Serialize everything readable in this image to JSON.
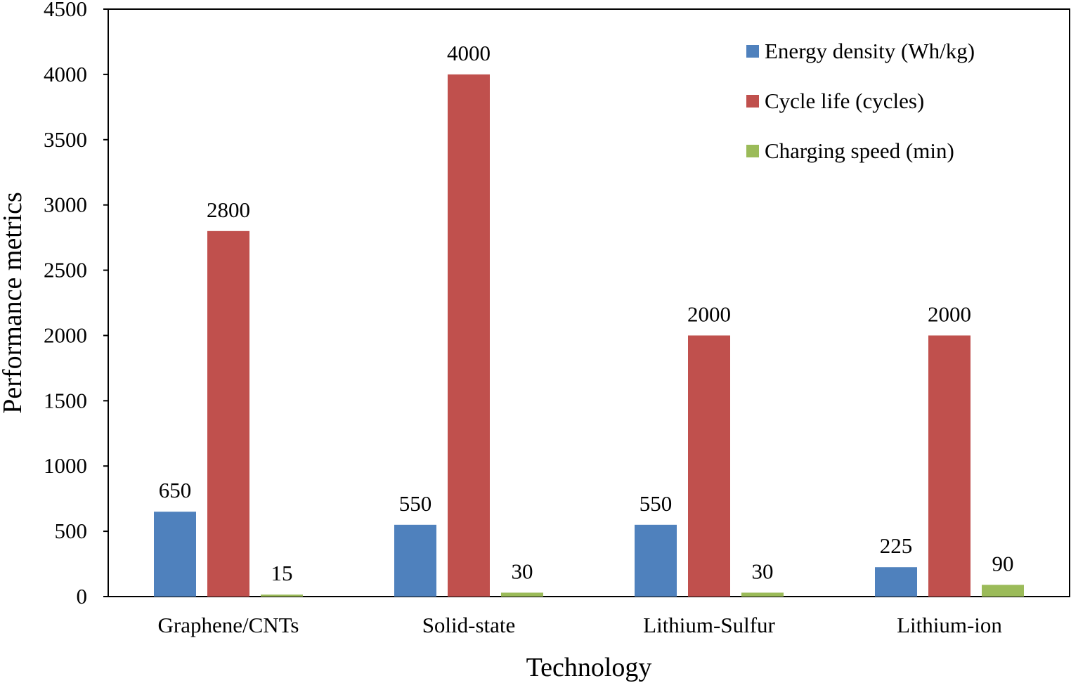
{
  "chart_data": {
    "type": "bar",
    "title": "",
    "xlabel": "Technology",
    "ylabel": "Performance metrics",
    "ylim": [
      0,
      4500
    ],
    "yticks": [
      0,
      500,
      1000,
      1500,
      2000,
      2500,
      3000,
      3500,
      4000,
      4500
    ],
    "grid": false,
    "legend_position": "top-right",
    "categories": [
      "Graphene/CNTs",
      "Solid-state",
      "Lithium-Sulfur",
      "Lithium-ion"
    ],
    "series": [
      {
        "name": "Energy density (Wh/kg)",
        "color": "#4f81bd",
        "values": [
          650,
          550,
          550,
          225
        ]
      },
      {
        "name": "Cycle life (cycles)",
        "color": "#c0504d",
        "values": [
          2800,
          4000,
          2000,
          2000
        ]
      },
      {
        "name": "Charging speed (min)",
        "color": "#9bbb59",
        "values": [
          15,
          30,
          30,
          90
        ]
      }
    ]
  }
}
